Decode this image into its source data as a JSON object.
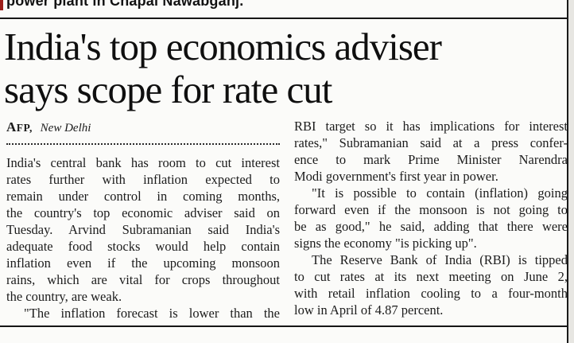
{
  "masthead": {
    "clipped_text": "power plant in Chapai Nawabganj."
  },
  "article": {
    "headline_line1": "India's top economics adviser",
    "headline_line2": "says scope for rate cut",
    "byline": {
      "agency": "AFP,",
      "location": "New Delhi"
    },
    "columns": {
      "left": {
        "lines": [
          "India's central bank has room to cut interest",
          "rates further with inflation expected to",
          "remain under control in coming months,",
          "the country's top economic adviser said on",
          "Tuesday. Arvind Subramanian said India's",
          "adequate food stocks would help contain",
          "inflation even if the upcoming monsoon",
          "rains, which are vital for crops throughout",
          "the country, are weak.",
          "\"The inflation forecast is lower than the"
        ]
      },
      "right": {
        "lines": [
          "RBI target so it has implications for interest",
          "rates,\" Subramanian said at a press confer-",
          "ence to mark Prime Minister Narendra",
          "Modi government's first year in power.",
          "\"It is possible to contain (inflation) going",
          "forward even if the monsoon is not going to",
          "be as good,\" he said, adding that there were",
          "signs the economy \"is picking up\".",
          "The Reserve Bank of India (RBI) is tipped",
          "to cut rates at its next meeting on June 2,",
          "with retail inflation cooling to a four-month",
          "low in April of 4.87 percent."
        ]
      }
    }
  },
  "colors": {
    "accent_red": "#9e1f1a",
    "rule_black": "#161616",
    "text": "#1c1c1c",
    "paper": "#fbfbf9",
    "margin_grey": "#e7e6e2"
  }
}
